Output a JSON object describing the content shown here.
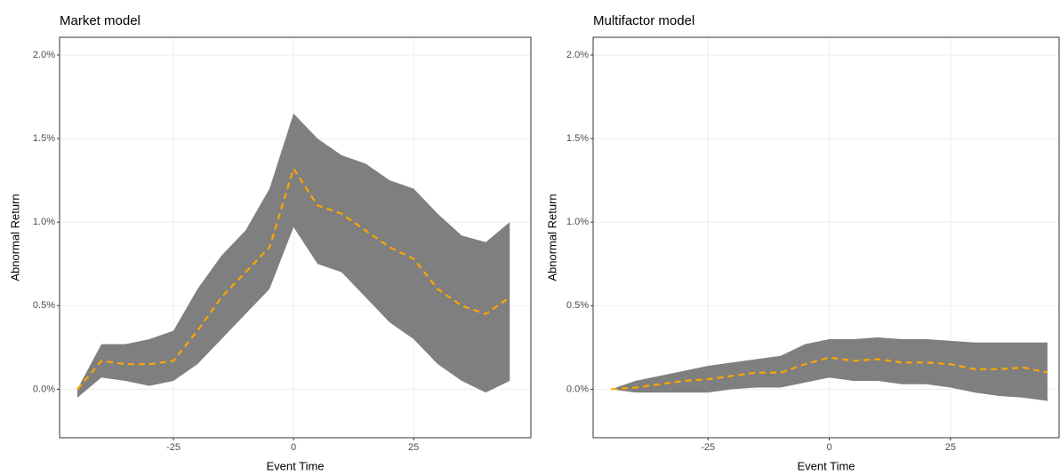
{
  "chart_data": [
    {
      "type": "ribbon",
      "title": "Market model",
      "x_label": "Event Time",
      "y_label": "Abnormal Return",
      "x": [
        -45,
        -40,
        -35,
        -30,
        -25,
        -20,
        -15,
        -10,
        -5,
        0,
        5,
        10,
        15,
        20,
        25,
        30,
        35,
        40,
        45
      ],
      "values": [
        0,
        0.17,
        0.15,
        0.15,
        0.17,
        0.35,
        0.55,
        0.7,
        0.85,
        1.32,
        1.1,
        1.05,
        0.95,
        0.85,
        0.78,
        0.6,
        0.5,
        0.45,
        0.55
      ],
      "lower": [
        -0.05,
        0.07,
        0.05,
        0.02,
        0.05,
        0.15,
        0.3,
        0.45,
        0.6,
        0.97,
        0.75,
        0.7,
        0.55,
        0.4,
        0.3,
        0.15,
        0.05,
        -0.02,
        0.05
      ],
      "upper": [
        0,
        0.27,
        0.27,
        0.3,
        0.35,
        0.6,
        0.8,
        0.95,
        1.2,
        1.65,
        1.5,
        1.4,
        1.35,
        1.25,
        1.2,
        1.05,
        0.92,
        0.88,
        1.0
      ],
      "color": "#ffa500",
      "band_color": "#7f7f7f",
      "xlim": [
        -48.7,
        49.4
      ],
      "ylim": [
        -0.29,
        2.106
      ],
      "xticks": [
        -25,
        0,
        25
      ],
      "yticks": [
        {
          "value": 0,
          "label": "0.0%"
        },
        {
          "value": 0.5,
          "label": "0.5%"
        },
        {
          "value": 1,
          "label": "1.0%"
        },
        {
          "value": 1.5,
          "label": "1.5%"
        },
        {
          "value": 2,
          "label": "2.0%"
        }
      ],
      "grid": true
    },
    {
      "type": "ribbon",
      "title": "Multifactor model",
      "x_label": "Event Time",
      "y_label": "Abnormal Return",
      "x": [
        -45,
        -40,
        -35,
        -30,
        -25,
        -20,
        -15,
        -10,
        -5,
        0,
        5,
        10,
        15,
        20,
        25,
        30,
        35,
        40,
        45
      ],
      "values": [
        0,
        0.01,
        0.03,
        0.05,
        0.06,
        0.08,
        0.1,
        0.1,
        0.15,
        0.19,
        0.17,
        0.18,
        0.16,
        0.16,
        0.15,
        0.12,
        0.12,
        0.13,
        0.1
      ],
      "lower": [
        0,
        -0.02,
        -0.02,
        -0.02,
        -0.02,
        0,
        0.01,
        0.01,
        0.04,
        0.07,
        0.05,
        0.05,
        0.03,
        0.03,
        0.01,
        -0.02,
        -0.04,
        -0.05,
        -0.07
      ],
      "upper": [
        0,
        0.05,
        0.08,
        0.11,
        0.14,
        0.16,
        0.18,
        0.2,
        0.27,
        0.3,
        0.3,
        0.31,
        0.3,
        0.3,
        0.29,
        0.28,
        0.28,
        0.28,
        0.28
      ],
      "color": "#ffa500",
      "band_color": "#7f7f7f",
      "xlim": [
        -48.7,
        47.4
      ],
      "ylim": [
        -0.29,
        2.106
      ],
      "xticks": [
        -25,
        0,
        25
      ],
      "yticks": [
        {
          "value": 0,
          "label": "0.0%"
        },
        {
          "value": 0.5,
          "label": "0.5%"
        },
        {
          "value": 1,
          "label": "1.0%"
        },
        {
          "value": 1.5,
          "label": "1.5%"
        },
        {
          "value": 2,
          "label": "2.0%"
        }
      ],
      "grid": true
    }
  ]
}
